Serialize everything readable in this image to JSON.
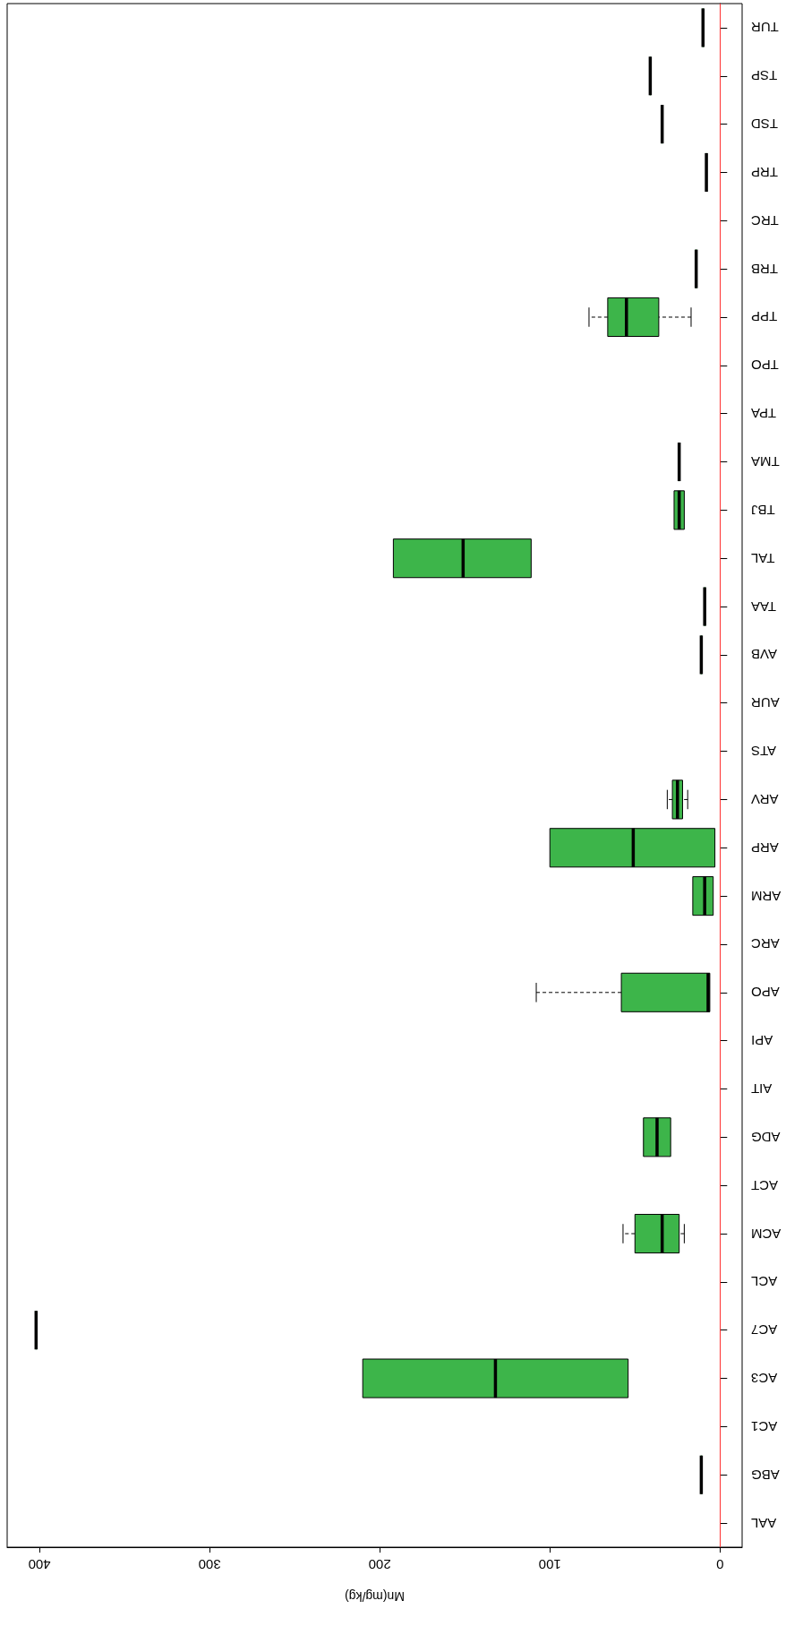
{
  "chart_data": {
    "type": "box",
    "orientation": "horizontal",
    "xlabel": "Mn(mg/kg)",
    "categories": [
      "TUR",
      "TSP",
      "TSD",
      "TRP",
      "TRC",
      "TRB",
      "TPP",
      "TPO",
      "TPA",
      "TMA",
      "TBJ",
      "TAL",
      "TAA",
      "AVB",
      "AUR",
      "ATS",
      "ARV",
      "ARP",
      "ARM",
      "ARC",
      "APO",
      "API",
      "AIT",
      "ADG",
      "ACT",
      "ACM",
      "ACL",
      "AC7",
      "AC3",
      "AC1",
      "ABG",
      "AAL"
    ],
    "color": "#3db54a",
    "boxes": [
      {
        "low": 10,
        "q1": 10,
        "median": 10,
        "q3": 10,
        "high": 10
      },
      {
        "low": 41,
        "q1": 41,
        "median": 41,
        "q3": 41,
        "high": 41
      },
      {
        "low": 34,
        "q1": 34,
        "median": 34,
        "q3": 34,
        "high": 34
      },
      {
        "low": 8,
        "q1": 8,
        "median": 8,
        "q3": 8,
        "high": 8
      },
      null,
      {
        "low": 14,
        "q1": 14,
        "median": 14,
        "q3": 14,
        "high": 14
      },
      {
        "low": 17,
        "q1": 36,
        "median": 55,
        "q3": 66,
        "high": 77
      },
      null,
      null,
      {
        "low": 24,
        "q1": 24,
        "median": 24,
        "q3": 24,
        "high": 24
      },
      {
        "low": 21,
        "q1": 21,
        "median": 24,
        "q3": 27,
        "high": 27
      },
      {
        "low": 111,
        "q1": 111,
        "median": 151,
        "q3": 192,
        "high": 192
      },
      {
        "low": 9,
        "q1": 9,
        "median": 9,
        "q3": 9,
        "high": 9
      },
      {
        "low": 11,
        "q1": 11,
        "median": 11,
        "q3": 11,
        "high": 11
      },
      null,
      null,
      {
        "low": 19,
        "q1": 22,
        "median": 25,
        "q3": 28,
        "high": 31
      },
      {
        "low": 3,
        "q1": 3,
        "median": 51,
        "q3": 100,
        "high": 100
      },
      {
        "low": 4,
        "q1": 4,
        "median": 9,
        "q3": 16,
        "high": 16
      },
      null,
      {
        "low": 6,
        "q1": 6,
        "median": 7,
        "q3": 58,
        "high": 108
      },
      null,
      null,
      {
        "low": 29,
        "q1": 29,
        "median": 37,
        "q3": 45,
        "high": 45
      },
      null,
      {
        "low": 21,
        "q1": 24,
        "median": 34,
        "q3": 50,
        "high": 57
      },
      null,
      {
        "low": 402,
        "q1": 402,
        "median": 402,
        "q3": 402,
        "high": 402
      },
      {
        "low": 54,
        "q1": 54,
        "median": 132,
        "q3": 210,
        "high": 210
      },
      null,
      {
        "low": 11,
        "q1": 11,
        "median": 11,
        "q3": 11,
        "high": 11
      },
      null
    ],
    "xlim": [
      419,
      -13
    ],
    "xticks": [
      0,
      100,
      200,
      300,
      400
    ],
    "ref_lines": [
      {
        "axis": "x",
        "value": 0,
        "color": "#ff3030"
      }
    ],
    "grid": false
  }
}
